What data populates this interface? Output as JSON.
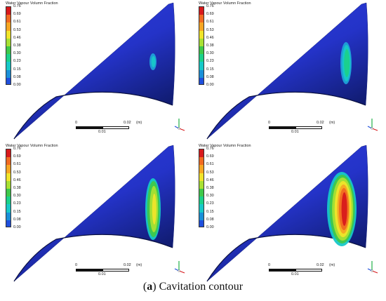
{
  "panels": [
    {
      "legend_title": "Water Vapour Volumn Fraction",
      "ticks": [
        "0.76",
        "0.69",
        "0.61",
        "0.53",
        "0.46",
        "0.38",
        "0.30",
        "0.23",
        "0.15",
        "0.08",
        "0.00"
      ],
      "scale": {
        "zero": "0",
        "max": "0.02",
        "unit": "(m)",
        "mid": "0.01"
      },
      "cavity_level": 1
    },
    {
      "legend_title": "Water Vapour Volumn Fraction",
      "ticks": [
        "0.76",
        "0.69",
        "0.61",
        "0.53",
        "0.46",
        "0.38",
        "0.30",
        "0.23",
        "0.15",
        "0.08",
        "0.00"
      ],
      "scale": {
        "zero": "0",
        "max": "0.02",
        "unit": "(m)",
        "mid": "0.01"
      },
      "cavity_level": 2
    },
    {
      "legend_title": "Water Vapour Volumn Fraction",
      "ticks": [
        "0.76",
        "0.69",
        "0.61",
        "0.53",
        "0.46",
        "0.38",
        "0.30",
        "0.23",
        "0.15",
        "0.08",
        "0.00"
      ],
      "scale": {
        "zero": "0",
        "max": "0.02",
        "unit": "(m)",
        "mid": "0.01"
      },
      "cavity_level": 3
    },
    {
      "legend_title": "Water Vapour Volumn Fraction",
      "ticks": [
        "0.76",
        "0.69",
        "0.61",
        "0.53",
        "0.46",
        "0.38",
        "0.30",
        "0.23",
        "0.15",
        "0.08",
        "0.00"
      ],
      "scale": {
        "zero": "0",
        "max": "0.02",
        "unit": "(m)",
        "mid": "0.01"
      },
      "cavity_level": 4
    }
  ],
  "legend_colors": [
    "#d7191c",
    "#f06a22",
    "#f6a623",
    "#f0e42a",
    "#a8e033",
    "#3fc84a",
    "#1bd18a",
    "#17c8c8",
    "#1a8fd8",
    "#1f4fdc",
    "#2a2ad0"
  ],
  "caption": {
    "label": "a",
    "text": " Cavitation contour"
  }
}
